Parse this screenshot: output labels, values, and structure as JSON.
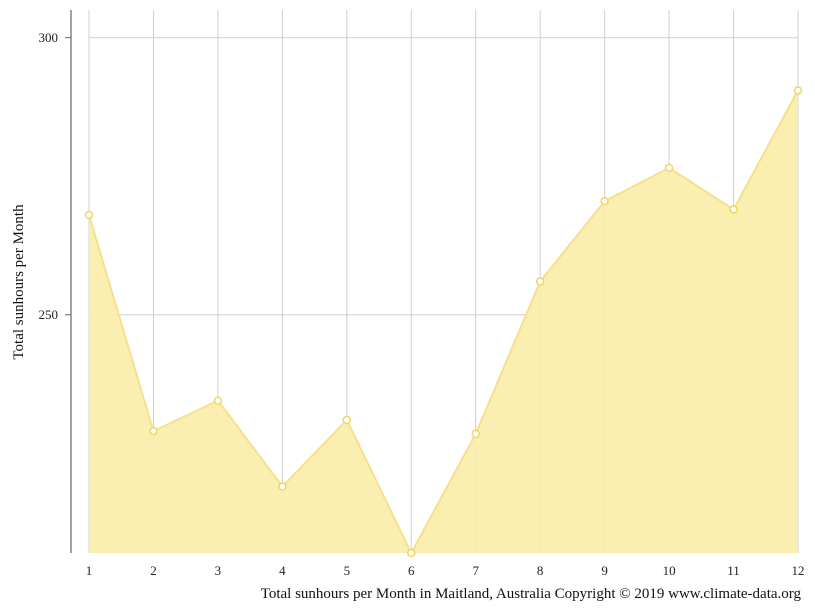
{
  "chart_data": {
    "type": "area",
    "title": "",
    "caption": "Total sunhours per Month in Maitland, Australia Copyright © 2019 www.climate-data.org",
    "xlabel": "",
    "ylabel": "Total sunhours per Month",
    "categories": [
      "1",
      "2",
      "3",
      "4",
      "5",
      "6",
      "7",
      "8",
      "9",
      "10",
      "11",
      "12"
    ],
    "series": [
      {
        "values": [
          268,
          229,
          234.5,
          219,
          231,
          207,
          228.5,
          256,
          270.5,
          276.5,
          269,
          290.5
        ]
      }
    ],
    "ylim": [
      207,
      305
    ],
    "yticks": [
      250,
      300
    ],
    "grid": true,
    "legend": "none",
    "colors": {
      "fill": "#f9eca8",
      "line": "#f6e08c",
      "marker_fill": "#ffffff",
      "marker_stroke": "#f2d560",
      "grid": "#d0d0d0",
      "axis": "#666666"
    }
  }
}
